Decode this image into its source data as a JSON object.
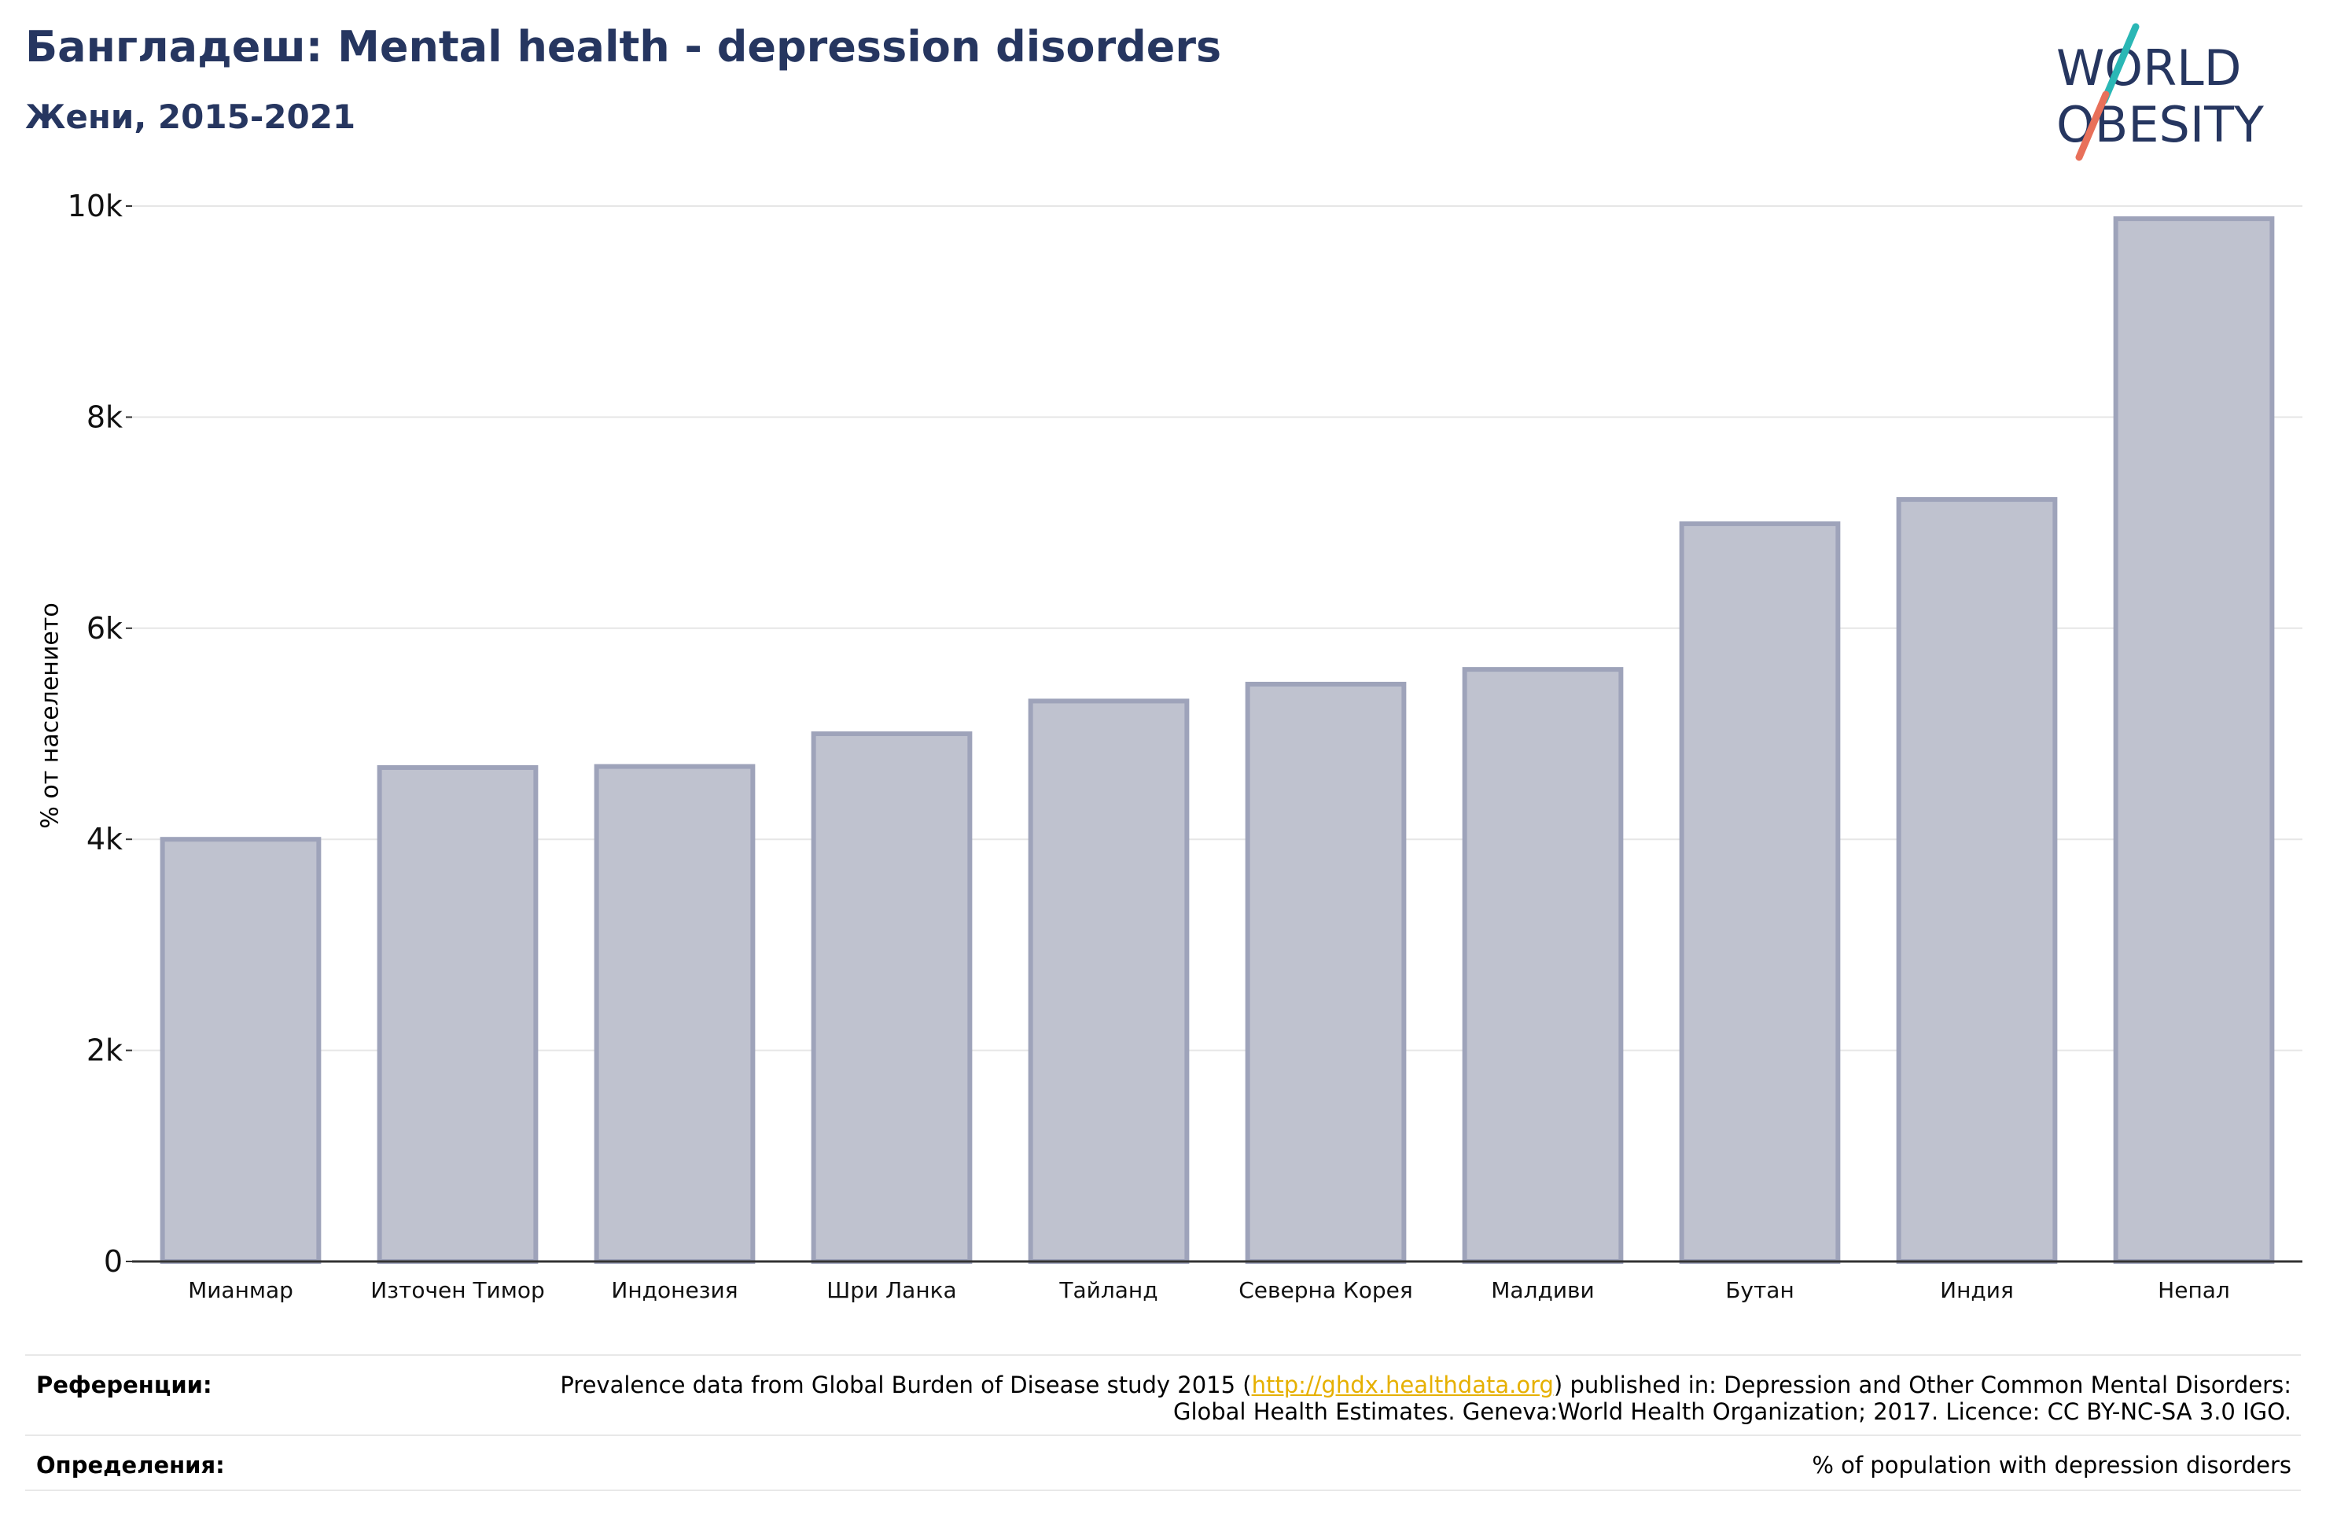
{
  "header": {
    "title": "Бангладеш: Mental health - depression disorders",
    "subtitle": "Жени, 2015-2021"
  },
  "logo": {
    "line1": "WORLD",
    "line2": "OBESITY",
    "text_color": "#263660",
    "accent_colors": [
      "#2ab7b5",
      "#e8705a"
    ]
  },
  "chart_data": {
    "type": "bar",
    "categories": [
      "Мианмар",
      "Източен Тимор",
      "Индонезия",
      "Шри Ланка",
      "Тайланд",
      "Северна Корея",
      "Малдиви",
      "Бутан",
      "Индия",
      "Непал"
    ],
    "values": [
      4000,
      4680,
      4690,
      5000,
      5310,
      5470,
      5610,
      6990,
      7220,
      9880
    ],
    "ylabel": "% от населението",
    "ylim": [
      0,
      10000
    ],
    "yticks": [
      0,
      2000,
      4000,
      6000,
      8000,
      10000
    ],
    "ytick_labels": [
      "0",
      "2k",
      "4k",
      "6k",
      "8k",
      "10k"
    ],
    "grid": true,
    "bar_fill": "#bfc2cf",
    "bar_stroke": "#9ea3ba"
  },
  "footer": {
    "references_label": "Референции:",
    "references_text_before": "Prevalence data from Global Burden of Disease study 2015 (",
    "references_link": "http://ghdx.healthdata.org",
    "references_text_after": ") published in: Depression and Other Common Mental Disorders: Global Health Estimates. Geneva:World Health Organization; 2017. Licence: CC BY-NC-SA 3.0 IGO.",
    "definitions_label": "Определения:",
    "definitions_text": "% of population with depression disorders"
  }
}
